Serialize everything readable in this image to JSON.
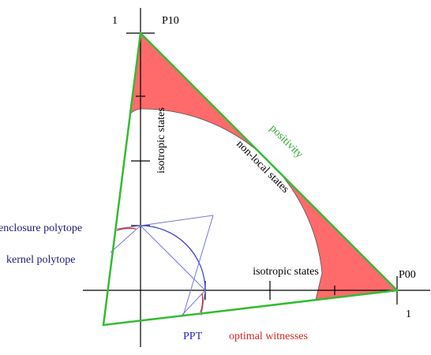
{
  "labels": {
    "top_one": "1",
    "p10": "P10",
    "right_one": "1",
    "p00": "P00",
    "positivity": "positivity",
    "non_local": "non-local states",
    "isotropic_vertical": "isotropic states",
    "isotropic_horizontal": "isotropic states",
    "enclosure": "enclosure polytope",
    "kernel": "kernel polytope",
    "ppt": "PPT",
    "optimal": "optimal witnesses"
  }
}
